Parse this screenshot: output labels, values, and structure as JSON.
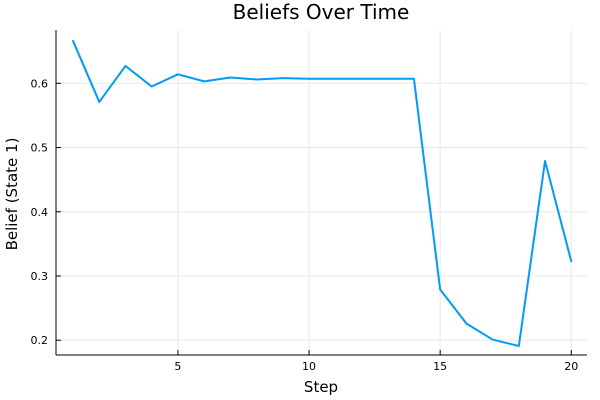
{
  "chart_data": {
    "type": "line",
    "title": "Beliefs Over Time",
    "xlabel": "Step",
    "ylabel": "Belief (State 1)",
    "xlim": [
      0.35,
      20.6
    ],
    "ylim": [
      0.177,
      0.683
    ],
    "xticks": [
      5,
      10,
      15,
      20
    ],
    "yticks": [
      0.2,
      0.3,
      0.4,
      0.5,
      0.6
    ],
    "grid": true,
    "legend": "none",
    "series": [
      {
        "color": "#009af9",
        "x": [
          1,
          2,
          3,
          4,
          5,
          6,
          7,
          8,
          9,
          10,
          11,
          12,
          13,
          14,
          15,
          16,
          17,
          18,
          19,
          20
        ],
        "y": [
          0.666,
          0.571,
          0.627,
          0.595,
          0.614,
          0.603,
          0.609,
          0.606,
          0.608,
          0.607,
          0.607,
          0.607,
          0.607,
          0.607,
          0.279,
          0.226,
          0.201,
          0.191,
          0.479,
          0.323
        ]
      }
    ]
  }
}
